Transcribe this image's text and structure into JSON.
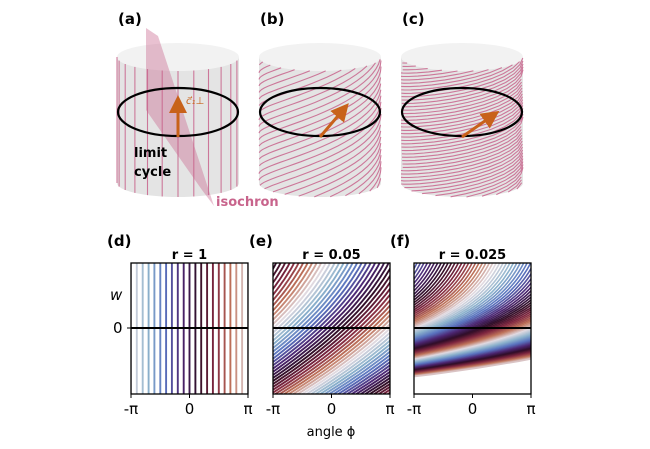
{
  "panel_labels": [
    "(a)",
    "(b)",
    "(c)",
    "(d)",
    "(e)",
    "(f)"
  ],
  "annotations": {
    "limit_cycle_1": "limit",
    "limit_cycle_2": "cycle",
    "isochron": "isochron",
    "vector": "c⃗₁⊥"
  },
  "colors": {
    "isochron": "#c8648c",
    "arrow": "#c8621a",
    "limit_cycle": "#000000"
  },
  "chart_data": {
    "type": "line",
    "xlabel": "angle ϕ",
    "ylabel": "w",
    "x_ticks": [
      "-π",
      "0",
      "π"
    ],
    "y_ticks": [
      "0"
    ],
    "xlim": [
      -3.1416,
      3.1416
    ],
    "panels": [
      {
        "title": "r = 1",
        "r": 1,
        "twist": 0
      },
      {
        "title": "r = 0.05",
        "r": 0.05,
        "twist": 0.6
      },
      {
        "title": "r = 0.025",
        "r": 0.025,
        "twist": 1.6
      }
    ],
    "n_isochrons": 20,
    "colormap": "twilight"
  }
}
